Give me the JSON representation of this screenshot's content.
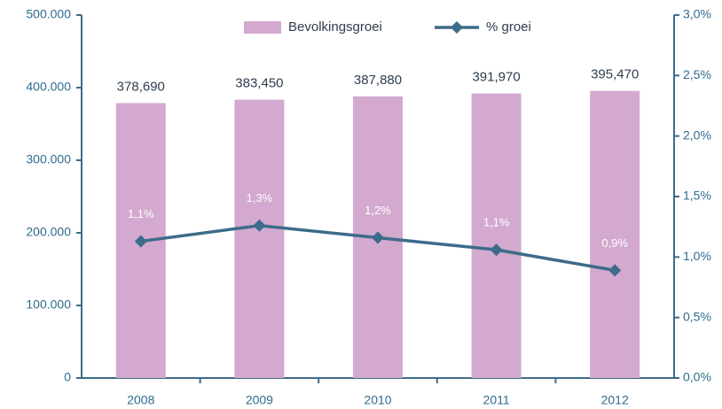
{
  "chart_data": {
    "type": "bar+line",
    "categories": [
      "2008",
      "2009",
      "2010",
      "2011",
      "2012"
    ],
    "series": [
      {
        "name": "Bevolkingsgroei",
        "type": "bar",
        "color": "#d3a9cf",
        "axis": "y",
        "values": [
          378690,
          383450,
          387880,
          391970,
          395470
        ],
        "value_labels": [
          "378,690",
          "383,450",
          "387,880",
          "391,970",
          "395,470"
        ]
      },
      {
        "name": "% groei",
        "type": "line",
        "color": "#3d6b8a",
        "axis": "y2",
        "values": [
          1.13,
          1.26,
          1.16,
          1.06,
          0.89
        ],
        "value_labels": [
          "1,1%",
          "1,3%",
          "1,2%",
          "1,1%",
          "0,9%"
        ]
      }
    ],
    "ylim": [
      0,
      500000
    ],
    "yticks": [
      0,
      {
        "value": 100000,
        "label": "100.000"
      },
      {
        "value": 200000,
        "label": "200.000"
      },
      {
        "value": 300000,
        "label": "300.000"
      },
      {
        "value": 400000,
        "label": "400.000"
      },
      {
        "value": 500000,
        "label": "500.000"
      }
    ],
    "y2lim": [
      0,
      3
    ],
    "y2ticks": [
      {
        "value": 0,
        "label": "0,0%"
      },
      {
        "value": 0.5,
        "label": "0,5%"
      },
      {
        "value": 1,
        "label": "1,0%"
      },
      {
        "value": 1.5,
        "label": "1,5%"
      },
      {
        "value": 2,
        "label": "2,0%"
      },
      {
        "value": 2.5,
        "label": "2,5%"
      },
      {
        "value": 3,
        "label": "3,0%"
      }
    ],
    "legend": "top"
  }
}
